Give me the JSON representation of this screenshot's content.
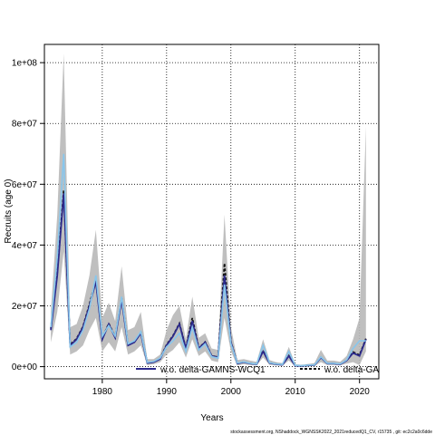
{
  "chart_data": {
    "type": "line",
    "title": "",
    "xlabel": "Years",
    "ylabel": "Recruits (age 0)",
    "xlim": [
      1971,
      2023
    ],
    "ylim": [
      -4000000,
      106000000
    ],
    "xticks": [
      1980,
      1990,
      2000,
      2010,
      2020
    ],
    "yticks": [
      0,
      20000000,
      40000000,
      60000000,
      80000000,
      100000000
    ],
    "ytick_labels": [
      "0e+00",
      "2e+07",
      "4e+07",
      "6e+07",
      "8e+07",
      "1e+08"
    ],
    "grid": true,
    "x": [
      1972,
      1973,
      1974,
      1975,
      1976,
      1977,
      1978,
      1979,
      1980,
      1981,
      1982,
      1983,
      1984,
      1985,
      1986,
      1987,
      1988,
      1989,
      1990,
      1991,
      1992,
      1993,
      1994,
      1995,
      1996,
      1997,
      1998,
      1999,
      2000,
      2001,
      2002,
      2003,
      2004,
      2005,
      2006,
      2007,
      2008,
      2009,
      2010,
      2011,
      2012,
      2013,
      2014,
      2015,
      2016,
      2017,
      2018,
      2019,
      2020,
      2021
    ],
    "series": [
      {
        "name": "w.o. delta-GAMNS-WCQ1",
        "color": "#2c2a8c",
        "style": "solid",
        "values": [
          12000000,
          30000000,
          57000000,
          7000000,
          9000000,
          13000000,
          20000000,
          28000000,
          9000000,
          14000000,
          9500000,
          22000000,
          7000000,
          8000000,
          11000000,
          1200000,
          1500000,
          2500000,
          7000000,
          10000000,
          14000000,
          6000000,
          15000000,
          6000000,
          8000000,
          3500000,
          3000000,
          30000000,
          8000000,
          1000000,
          1500000,
          1000000,
          800000,
          5000000,
          1200000,
          800000,
          600000,
          3500000,
          300000,
          200000,
          400000,
          500000,
          3000000,
          1000000,
          1000000,
          800000,
          2000000,
          4500000,
          3500000,
          9000000
        ],
        "lower": [
          8000000,
          18000000,
          38000000,
          4000000,
          5000000,
          7000000,
          12000000,
          16000000,
          5000000,
          8000000,
          5000000,
          13000000,
          4000000,
          5000000,
          7000000,
          500000,
          800000,
          1500000,
          4000000,
          5500000,
          8000000,
          3000000,
          9000000,
          3500000,
          5000000,
          2000000,
          1500000,
          16000000,
          5000000,
          400000,
          800000,
          500000,
          400000,
          3000000,
          600000,
          400000,
          300000,
          2000000,
          100000,
          50000,
          100000,
          200000,
          1500000,
          500000,
          500000,
          400000,
          1000000,
          1500000,
          500000,
          5000000
        ],
        "upper": [
          18000000,
          50000000,
          103000000,
          13000000,
          14000000,
          20000000,
          30000000,
          45000000,
          16000000,
          21000000,
          15000000,
          33000000,
          12000000,
          13000000,
          18000000,
          2500000,
          2500000,
          4000000,
          12000000,
          17000000,
          20000000,
          9000000,
          23000000,
          9500000,
          11000000,
          6000000,
          5500000,
          50000000,
          13000000,
          2200000,
          2500000,
          2000000,
          1600000,
          9000000,
          2200000,
          1500000,
          1200000,
          6500000,
          800000,
          600000,
          900000,
          1200000,
          5500000,
          2000000,
          2000000,
          1600000,
          3500000,
          9000000,
          16000000,
          79000000
        ]
      },
      {
        "name": "w.o. delta-GAMNS-WCQ1-CVrt",
        "color": "#88c6ec",
        "style": "solid",
        "values": [
          13000000,
          36000000,
          70000000,
          6500000,
          8000000,
          12000000,
          19000000,
          30000000,
          10000000,
          13500000,
          10000000,
          23000000,
          7500000,
          8500000,
          11500000,
          1400000,
          1700000,
          2800000,
          6500000,
          8500000,
          11000000,
          5000000,
          13000000,
          5500000,
          7500000,
          3300000,
          2800000,
          27000000,
          7500000,
          1200000,
          1600000,
          1100000,
          900000,
          7000000,
          1300000,
          900000,
          700000,
          5000000,
          400000,
          300000,
          500000,
          600000,
          3200000,
          1100000,
          1100000,
          900000,
          2200000,
          6000000,
          8500000,
          8500000
        ]
      },
      {
        "name": "w.o. delta-GAMNS-WCQ1-dashed",
        "color": "#111111",
        "style": "dashed",
        "values": [
          12500000,
          31000000,
          58000000,
          7200000,
          9200000,
          13200000,
          20500000,
          28500000,
          9300000,
          14200000,
          9700000,
          22500000,
          7200000,
          8200000,
          11200000,
          1250000,
          1550000,
          2600000,
          7200000,
          10200000,
          14200000,
          6100000,
          16000000,
          6100000,
          8100000,
          3600000,
          3100000,
          34000000,
          8200000,
          1050000,
          1550000,
          1050000,
          850000,
          5200000,
          1250000,
          850000,
          650000,
          3600000,
          320000,
          220000,
          420000,
          520000,
          3100000,
          1050000,
          1050000,
          850000,
          2100000,
          4800000,
          3800000,
          9200000
        ]
      }
    ],
    "legend": [
      {
        "label": "w.o. delta-GAMNS-WCQ1",
        "color": "#2c2a8c",
        "style": "solid"
      },
      {
        "label": "w.o. delta-GA",
        "color": "#111111",
        "style": "dashed"
      }
    ]
  },
  "footer": "stockassessment.org, NShaddock_WGNSSK2022_2021reducedQ1_CV, r15735 , git: ec2c2a0c6dde"
}
